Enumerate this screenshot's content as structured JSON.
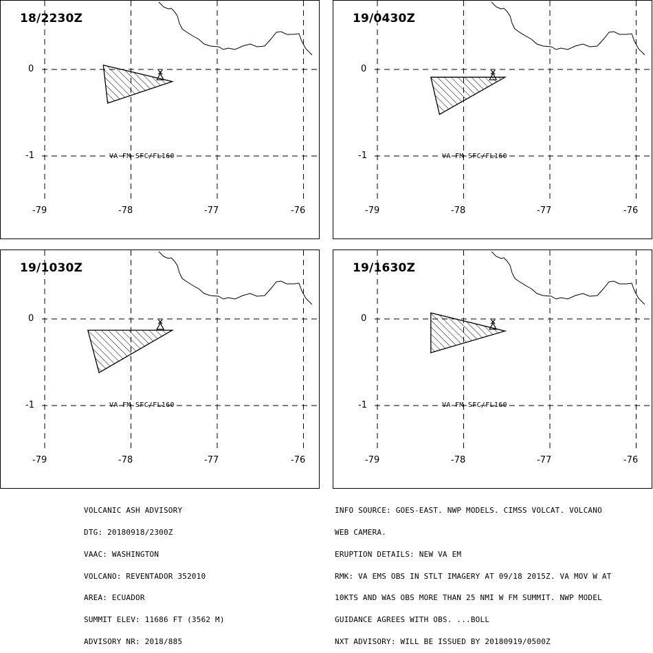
{
  "panels": [
    {
      "title": "18/2230Z",
      "layer_label": "VA FM SFC/FL160",
      "ash_polygon_lonlat": [
        [
          -78.32,
          0.05
        ],
        [
          -77.52,
          -0.14
        ],
        [
          -78.27,
          -0.39
        ]
      ]
    },
    {
      "title": "19/0430Z",
      "layer_label": "VA FM SFC/FL160",
      "ash_polygon_lonlat": [
        [
          -78.38,
          -0.09
        ],
        [
          -77.52,
          -0.09
        ],
        [
          -78.28,
          -0.52
        ]
      ]
    },
    {
      "title": "19/1030Z",
      "layer_label": "VA FM SFC/FL160",
      "ash_polygon_lonlat": [
        [
          -78.5,
          -0.13
        ],
        [
          -77.52,
          -0.13
        ],
        [
          -78.37,
          -0.62
        ]
      ]
    },
    {
      "title": "19/1630Z",
      "layer_label": "VA FM SFC/FL160",
      "ash_polygon_lonlat": [
        [
          -78.38,
          0.07
        ],
        [
          -77.52,
          -0.14
        ],
        [
          -78.38,
          -0.39
        ]
      ]
    }
  ],
  "lat_ticks": [
    "0",
    "-1"
  ],
  "lon_ticks": [
    "-79",
    "-78",
    "-77",
    "-76"
  ],
  "volcano_lonlat": [
    -77.66,
    -0.08
  ],
  "advisory_left": [
    "VOLCANIC ASH ADVISORY",
    "DTG: 20180918/2300Z",
    "VAAC: WASHINGTON",
    "VOLCANO: REVENTADOR 352010",
    "AREA: ECUADOR",
    "SUMMIT ELEV: 11686 FT (3562 M)",
    "ADVISORY NR: 2018/885"
  ],
  "advisory_right": [
    "INFO SOURCE: GOES-EAST. NWP MODELS. CIMSS VOLCAT. VOLCANO",
    "WEB CAMERA.",
    "ERUPTION DETAILS: NEW VA EM",
    "RMK: VA EMS OBS IN STLT IMAGERY AT 09/18 2015Z. VA MOV W AT",
    "10KTS AND WAS OBS MORE THAN 25 NMI W FM SUMMIT. NWP MODEL",
    "GUIDANCE AGREES WITH OBS. ...BOLL",
    "NXT ADVISORY: WILL BE ISSUED BY 20180919/0500Z"
  ]
}
